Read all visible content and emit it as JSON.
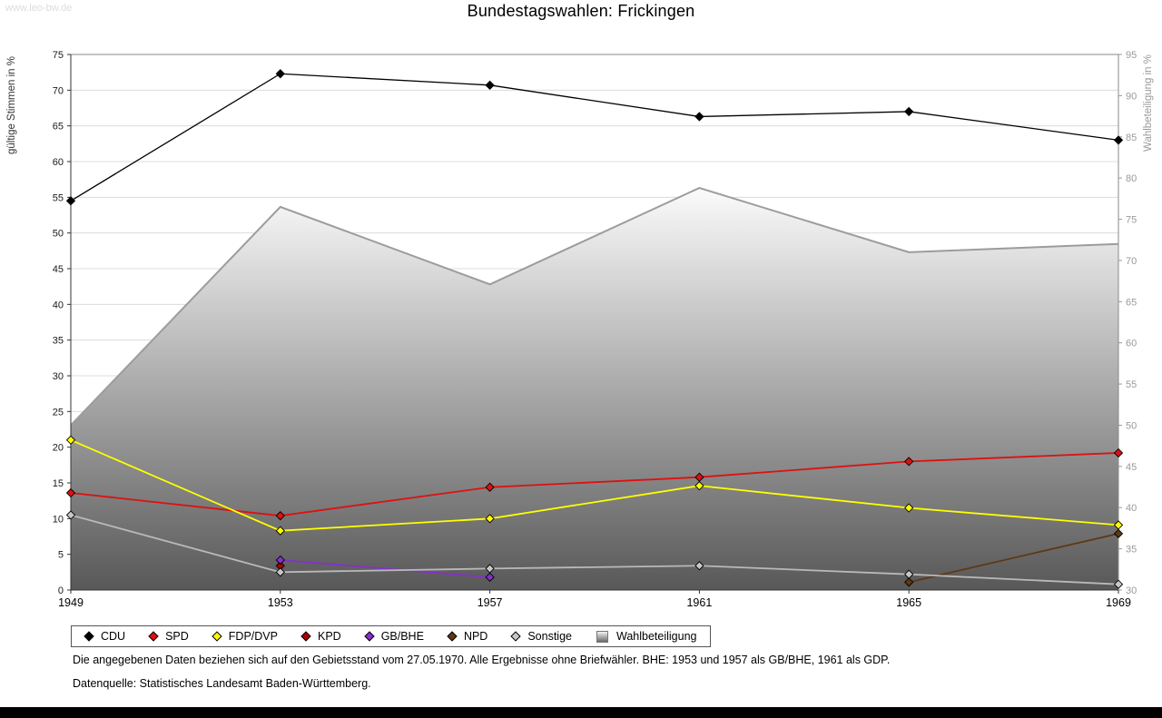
{
  "page": {
    "watermark": "www.leo-bw.de",
    "title": "Bundestagswahlen: Frickingen",
    "footnote1": "Die angegebenen Daten beziehen sich auf den Gebietsstand vom 27.05.1970. Alle Ergebnisse ohne Briefwähler. BHE: 1953 und 1957 als GB/BHE, 1961 als GDP.",
    "footnote2": "Datenquelle: Statistisches Landesamt Baden-Württemberg."
  },
  "chart_data": {
    "type": "line",
    "title": "Bundestagswahlen: Frickingen",
    "x": [
      1949,
      1953,
      1957,
      1961,
      1965,
      1969
    ],
    "ylabel_left": "gültige Stimmen in %",
    "ylabel_right": "Wahlbeteiligung in %",
    "ylim_left": [
      0,
      75
    ],
    "ylim_right": [
      30,
      95
    ],
    "ytick_step": 5,
    "grid": true,
    "legend_position": "bottom",
    "series": [
      {
        "name": "CDU",
        "type": "line",
        "axis": "left",
        "color": "#000000",
        "values": [
          54.5,
          72.3,
          70.7,
          66.3,
          67.0,
          63.0
        ]
      },
      {
        "name": "SPD",
        "type": "line",
        "axis": "left",
        "color": "#dd1111",
        "values": [
          13.6,
          10.4,
          14.4,
          15.8,
          18.0,
          19.2
        ]
      },
      {
        "name": "FDP/DVP",
        "type": "line",
        "axis": "left",
        "color": "#ffff00",
        "values": [
          21.0,
          8.3,
          10.0,
          14.6,
          11.5,
          9.1
        ]
      },
      {
        "name": "KPD",
        "type": "line",
        "axis": "left",
        "color": "#aa0000",
        "values": [
          null,
          3.4,
          null,
          null,
          null,
          null
        ]
      },
      {
        "name": "GB/BHE",
        "type": "line",
        "axis": "left",
        "color": "#8531c8",
        "values": [
          null,
          4.2,
          1.8,
          null,
          null,
          null
        ]
      },
      {
        "name": "NPD",
        "type": "line",
        "axis": "left",
        "color": "#5f3815",
        "values": [
          null,
          null,
          null,
          null,
          1.1,
          7.9
        ]
      },
      {
        "name": "Sonstige",
        "type": "line",
        "axis": "left",
        "color": "#b9b9b9",
        "marker_fill": "#c8c8c8",
        "values": [
          10.5,
          2.5,
          3.0,
          3.4,
          2.2,
          0.8
        ]
      },
      {
        "name": "Wahlbeteiligung",
        "type": "area",
        "axis": "right",
        "color": "#9c9c9c",
        "fill_top": "#fbfbfb",
        "fill_bottom": "#585858",
        "values": [
          50.0,
          76.5,
          67.1,
          78.8,
          71.0,
          72.0
        ]
      }
    ]
  }
}
